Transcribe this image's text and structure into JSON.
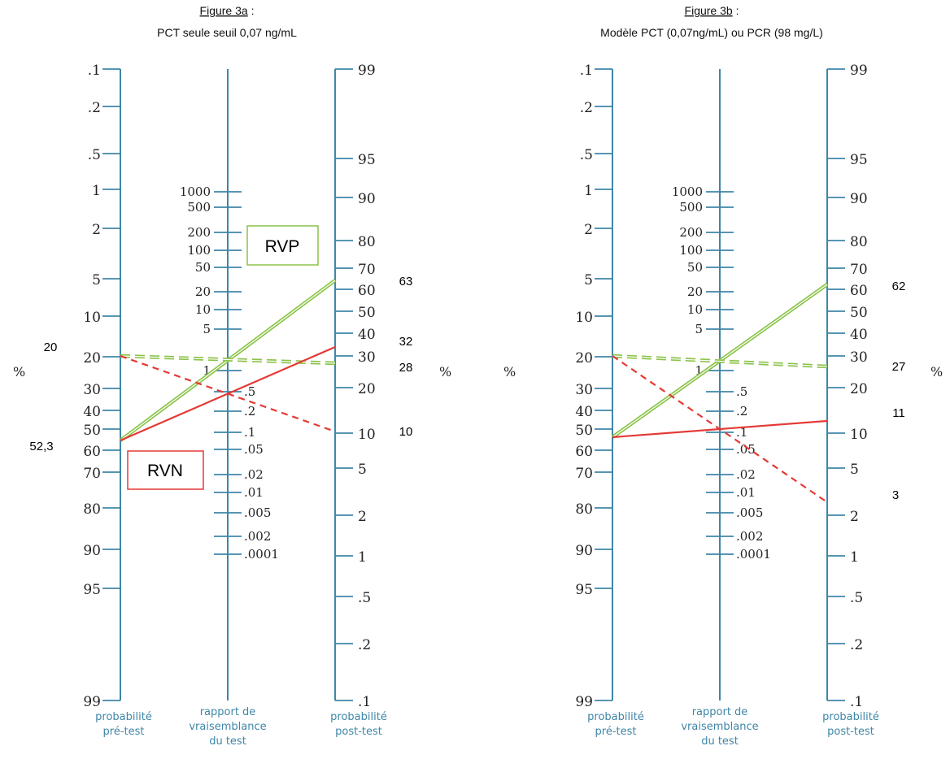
{
  "panels": [
    {
      "id": "3a",
      "caption_main": "Figure 3a",
      "caption_colon": " :",
      "caption_sub": "PCT seule seuil 0,07 ng/mL",
      "annotations": {
        "pre_20": "20",
        "pre_523": "52,3",
        "post_63": "63",
        "post_32": "32",
        "post_28": "28",
        "post_10": "10"
      },
      "boxes": {
        "rvp": "RVP",
        "rvn": "RVN"
      },
      "lines": [
        {
          "name": "rvp-line-pre523",
          "color": "#8bc34a",
          "style": "double",
          "from_pre": 52.3,
          "to_post": 63
        },
        {
          "name": "rvp-line-pre20",
          "color": "#8bc34a",
          "style": "double-dashed",
          "from_pre": 20,
          "to_post": 28
        },
        {
          "name": "rvn-line-pre523",
          "color": "#e53935",
          "style": "solid",
          "from_pre": 52.3,
          "to_post": 32
        },
        {
          "name": "rvn-line-pre20",
          "color": "#e53935",
          "style": "dashed",
          "from_pre": 20,
          "to_post": 10
        }
      ]
    },
    {
      "id": "3b",
      "caption_main": "Figure 3b",
      "caption_colon": " :",
      "caption_sub": "Modèle PCT (0,07ng/mL) ou PCR (98 mg/L)",
      "annotations": {
        "post_62": "62",
        "post_27": "27",
        "post_11": "11",
        "post_3": "3"
      },
      "lines": [
        {
          "name": "rvp-line-pre52",
          "color": "#8bc34a",
          "style": "double",
          "from_pre": 52,
          "to_post": 62
        },
        {
          "name": "rvp-line-pre20",
          "color": "#8bc34a",
          "style": "double-dashed",
          "from_pre": 20,
          "to_post": 27
        },
        {
          "name": "rvn-line-pre52",
          "color": "#e53935",
          "style": "solid",
          "from_pre": 52,
          "to_post": 11
        },
        {
          "name": "rvn-line-pre20",
          "color": "#e53935",
          "style": "dashed",
          "from_pre": 20,
          "to_post": 3
        }
      ]
    }
  ],
  "axis_labels": {
    "pre": [
      ".1",
      ".2",
      ".5",
      "1",
      "2",
      "5",
      "10",
      "20",
      "30",
      "40",
      "50",
      "60",
      "70",
      "80",
      "90",
      "95",
      "99"
    ],
    "lr_upper": [
      "1000",
      "500",
      "200",
      "100",
      "50",
      "20",
      "10",
      "5",
      "1"
    ],
    "lr_lower": [
      ".5",
      ".2",
      ".1",
      ".05",
      ".02",
      ".01",
      ".005",
      ".002",
      ".0001"
    ],
    "post": [
      "99",
      "95",
      "90",
      "80",
      "70",
      "60",
      "50",
      "40",
      "30",
      "20",
      "10",
      "5",
      "2",
      "1",
      ".5",
      ".2",
      ".1"
    ],
    "percent": "%"
  },
  "footer": {
    "pre_1": "probabilité",
    "pre_2": "pré-test",
    "lr_1": "rapport de",
    "lr_2": "vraisemblance",
    "lr_3": "du test",
    "post_1": "probabilité",
    "post_2": "post-test"
  },
  "colors": {
    "axis": "#3f86a8",
    "green": "#8bc34a",
    "red": "#e53935"
  }
}
